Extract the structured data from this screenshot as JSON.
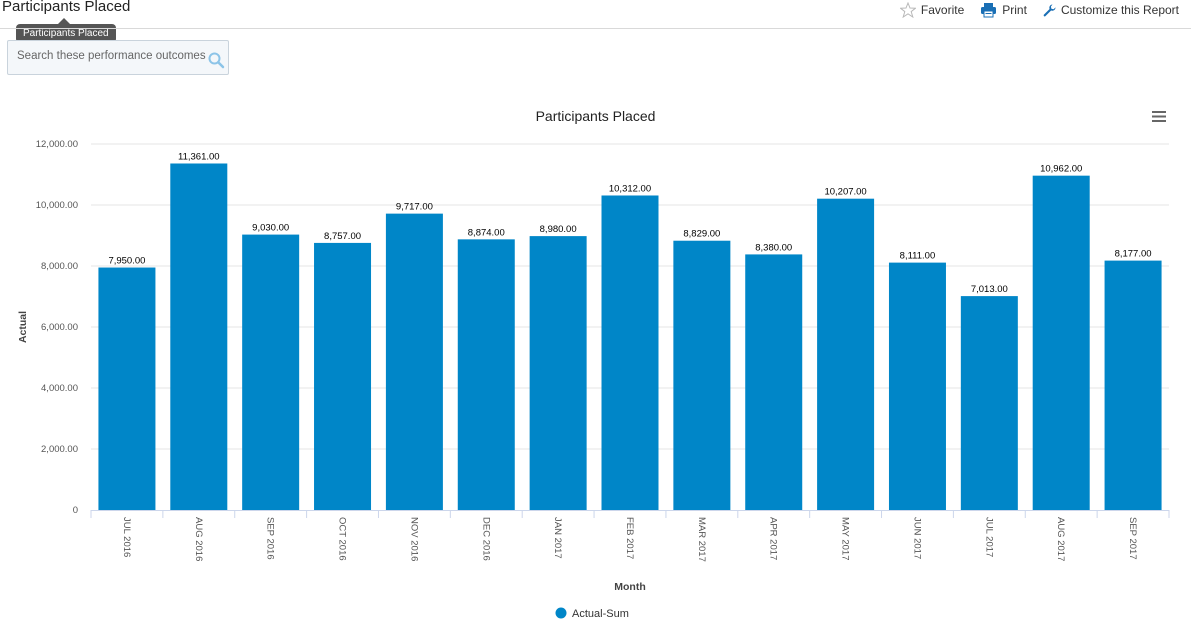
{
  "page": {
    "title": "Participants Placed",
    "tooltip": "Participants Placed"
  },
  "header_actions": {
    "favorite_label": "Favorite",
    "print_label": "Print",
    "customize_label": "Customize this Report"
  },
  "search": {
    "placeholder": "Search these performance outcomes"
  },
  "colors": {
    "bar": "#0086c8",
    "grid": "#e6e6e6"
  },
  "chart_data": {
    "type": "bar",
    "title": "Participants Placed",
    "xlabel": "Month",
    "ylabel": "Actual",
    "ylim": [
      0,
      12000
    ],
    "yticks": [
      0,
      2000,
      4000,
      6000,
      8000,
      10000,
      12000
    ],
    "ytick_labels": [
      "0",
      "2,000.00",
      "4,000.00",
      "6,000.00",
      "8,000.00",
      "10,000.00",
      "12,000.00"
    ],
    "categories": [
      "JUL 2016",
      "AUG 2016",
      "SEP 2016",
      "OCT 2016",
      "NOV 2016",
      "DEC 2016",
      "JAN 2017",
      "FEB 2017",
      "MAR 2017",
      "APR 2017",
      "MAY 2017",
      "JUN 2017",
      "JUL 2017",
      "AUG 2017",
      "SEP 2017"
    ],
    "series": [
      {
        "name": "Actual-Sum",
        "values": [
          7950,
          11361,
          9030,
          8757,
          9717,
          8874,
          8980,
          10312,
          8829,
          8380,
          10207,
          8111,
          7013,
          10962,
          8177
        ],
        "labels": [
          "7,950.00",
          "11,361.00",
          "9,030.00",
          "8,757.00",
          "9,717.00",
          "8,874.00",
          "8,980.00",
          "10,312.00",
          "8,829.00",
          "8,380.00",
          "10,207.00",
          "8,111.00",
          "7,013.00",
          "10,962.00",
          "8,177.00"
        ]
      }
    ],
    "grid": true,
    "legend_position": "bottom-center"
  }
}
